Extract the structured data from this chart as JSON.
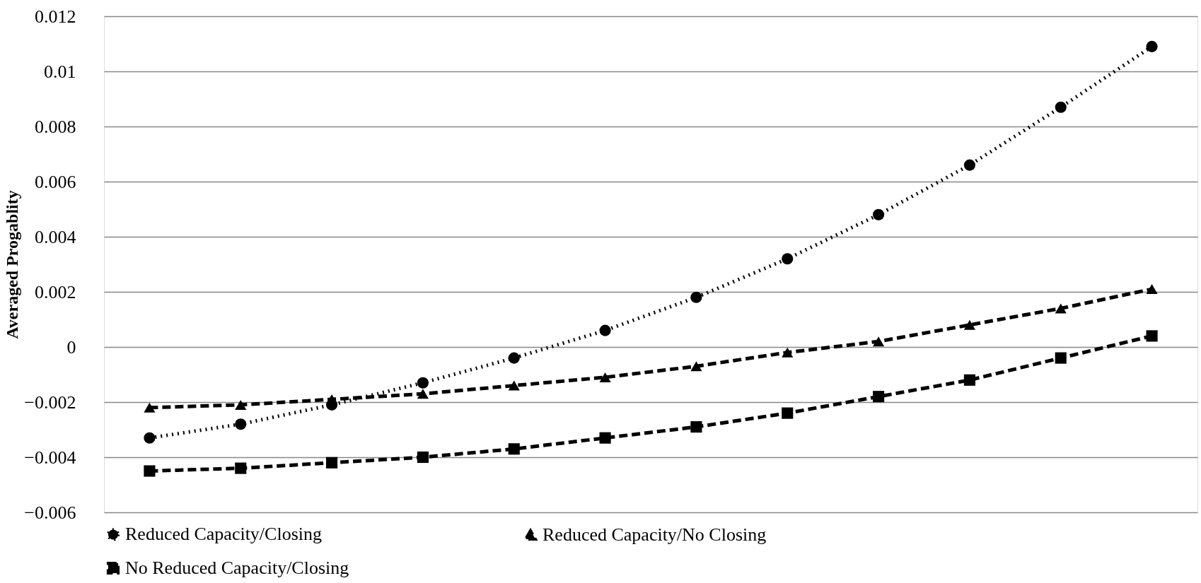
{
  "chart_data": {
    "type": "line",
    "ylabel": "Averaged Progablity",
    "categories": [
      null,
      null,
      null,
      null,
      null,
      null,
      null,
      null,
      null,
      null,
      null,
      null
    ],
    "series": [
      {
        "name": "Reduced Capacity/Closing",
        "color": "#000000",
        "marker": "circle",
        "line_style": "dotted",
        "values": [
          -0.0033,
          -0.0028,
          -0.0021,
          -0.0013,
          -0.0004,
          0.0006,
          0.0018,
          0.0032,
          0.0048,
          0.0066,
          0.0087,
          0.0109
        ]
      },
      {
        "name": "Reduced Capacity/No Closing",
        "color": "#000000",
        "marker": "triangle",
        "line_style": "dashed",
        "values": [
          -0.0022,
          -0.0021,
          -0.0019,
          -0.0017,
          -0.0014,
          -0.0011,
          -0.0007,
          -0.0002,
          0.0002,
          0.0008,
          0.0014,
          0.0021
        ]
      },
      {
        "name": "No Reduced Capacity/Closing",
        "color": "#000000",
        "marker": "square",
        "line_style": "dashed",
        "values": [
          -0.0045,
          -0.0044,
          -0.0042,
          -0.004,
          -0.0037,
          -0.0033,
          -0.0029,
          -0.0024,
          -0.0018,
          -0.0012,
          -0.0004,
          0.0004
        ]
      }
    ],
    "ylim": [
      -0.006,
      0.012
    ],
    "yticks": [
      -0.006,
      -0.004,
      -0.002,
      0,
      0.002,
      0.004,
      0.006,
      0.008,
      0.01,
      0.012
    ],
    "grid": "y",
    "legend": "bottom",
    "tick_labels": "y"
  }
}
